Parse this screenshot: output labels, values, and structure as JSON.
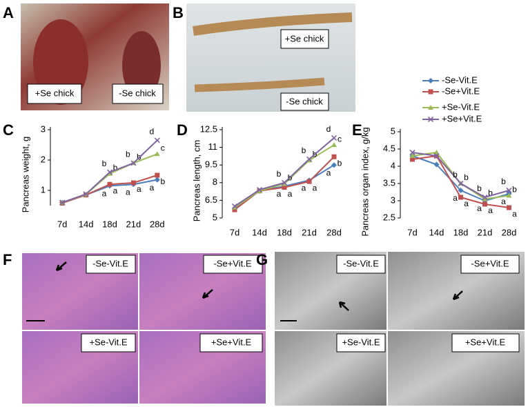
{
  "panels": {
    "A": {
      "letter": "A",
      "labels": [
        "+Se chick",
        "-Se chick"
      ]
    },
    "B": {
      "letter": "B",
      "labels": [
        "+Se chick",
        "-Se chick"
      ]
    },
    "C": {
      "letter": "C"
    },
    "D": {
      "letter": "D"
    },
    "E": {
      "letter": "E"
    },
    "F": {
      "letter": "F",
      "labels": [
        "-Se-Vit.E",
        "-Se+Vit.E",
        "+Se-Vit.E",
        "+Se+Vit.E"
      ]
    },
    "G": {
      "letter": "G",
      "labels": [
        "-Se-Vit.E",
        "-Se+Vit.E",
        "+Se-Vit.E",
        "+Se+Vit.E"
      ]
    }
  },
  "chart_data": [
    {
      "type": "line",
      "y_label": "Pancreas weight, g",
      "categories": [
        "7d",
        "14d",
        "18d",
        "21d",
        "28d"
      ],
      "ylim": [
        0.5,
        3
      ],
      "yticks": [
        1,
        2,
        3
      ],
      "series": [
        {
          "name": "-Se-Vit.E",
          "color": "#4a7ebb",
          "values": [
            0.6,
            0.85,
            1.15,
            1.2,
            1.35
          ],
          "significance": [
            null,
            null,
            "a",
            "a",
            "a"
          ]
        },
        {
          "name": "-Se+Vit.E",
          "color": "#c0504d",
          "values": [
            0.58,
            0.85,
            1.2,
            1.25,
            1.5
          ],
          "significance": [
            null,
            null,
            "a",
            "a",
            "b"
          ]
        },
        {
          "name": "+Se-Vit.E",
          "color": "#9bbb59",
          "values": [
            0.6,
            0.87,
            1.55,
            1.9,
            2.2
          ],
          "significance": [
            null,
            null,
            "b",
            "b",
            "c"
          ]
        },
        {
          "name": "+Se+Vit.E",
          "color": "#8064a2",
          "values": [
            0.6,
            0.88,
            1.6,
            1.9,
            2.65
          ],
          "significance": [
            null,
            null,
            "b",
            "b",
            "d"
          ]
        }
      ]
    },
    {
      "type": "line",
      "y_label": "Pancreas length, cm",
      "categories": [
        "7d",
        "14d",
        "18d",
        "21d",
        "28d"
      ],
      "ylim": [
        5,
        12.5
      ],
      "yticks": [
        5,
        6.5,
        8,
        9.5,
        11,
        12.5
      ],
      "series": [
        {
          "values": [
            5.8,
            7.3,
            7.7,
            8.2,
            9.5
          ],
          "significance": [
            null,
            null,
            "a",
            "a",
            "a"
          ]
        },
        {
          "values": [
            5.7,
            7.3,
            7.6,
            8.1,
            10.2
          ],
          "significance": [
            null,
            null,
            "a",
            "a",
            "b"
          ]
        },
        {
          "values": [
            5.9,
            7.3,
            7.9,
            9.9,
            11.2
          ],
          "significance": [
            null,
            null,
            "b",
            "b",
            "c"
          ]
        },
        {
          "values": [
            6.0,
            7.4,
            8.0,
            10.0,
            11.8
          ],
          "significance": [
            null,
            null,
            "b",
            "b",
            "d"
          ]
        }
      ]
    },
    {
      "type": "line",
      "y_label": "Pancreas organ index, g/kg",
      "categories": [
        "7d",
        "14d",
        "18d",
        "21d",
        "28d"
      ],
      "ylim": [
        2.5,
        5
      ],
      "yticks": [
        2.5,
        3,
        3.5,
        4,
        4.5,
        5
      ],
      "series": [
        {
          "values": [
            4.3,
            4.05,
            3.3,
            3.0,
            3.2
          ],
          "significance": [
            null,
            null,
            "a",
            "a",
            "a"
          ]
        },
        {
          "values": [
            4.2,
            4.3,
            3.1,
            2.9,
            2.8
          ],
          "significance": [
            null,
            null,
            "a",
            "a",
            "a"
          ]
        },
        {
          "values": [
            4.3,
            4.4,
            3.5,
            3.05,
            3.15
          ],
          "significance": [
            null,
            null,
            "b",
            "b",
            "b"
          ]
        },
        {
          "values": [
            4.4,
            4.3,
            3.5,
            3.1,
            3.3
          ],
          "significance": [
            null,
            null,
            "b",
            "b",
            "b"
          ]
        }
      ]
    }
  ]
}
